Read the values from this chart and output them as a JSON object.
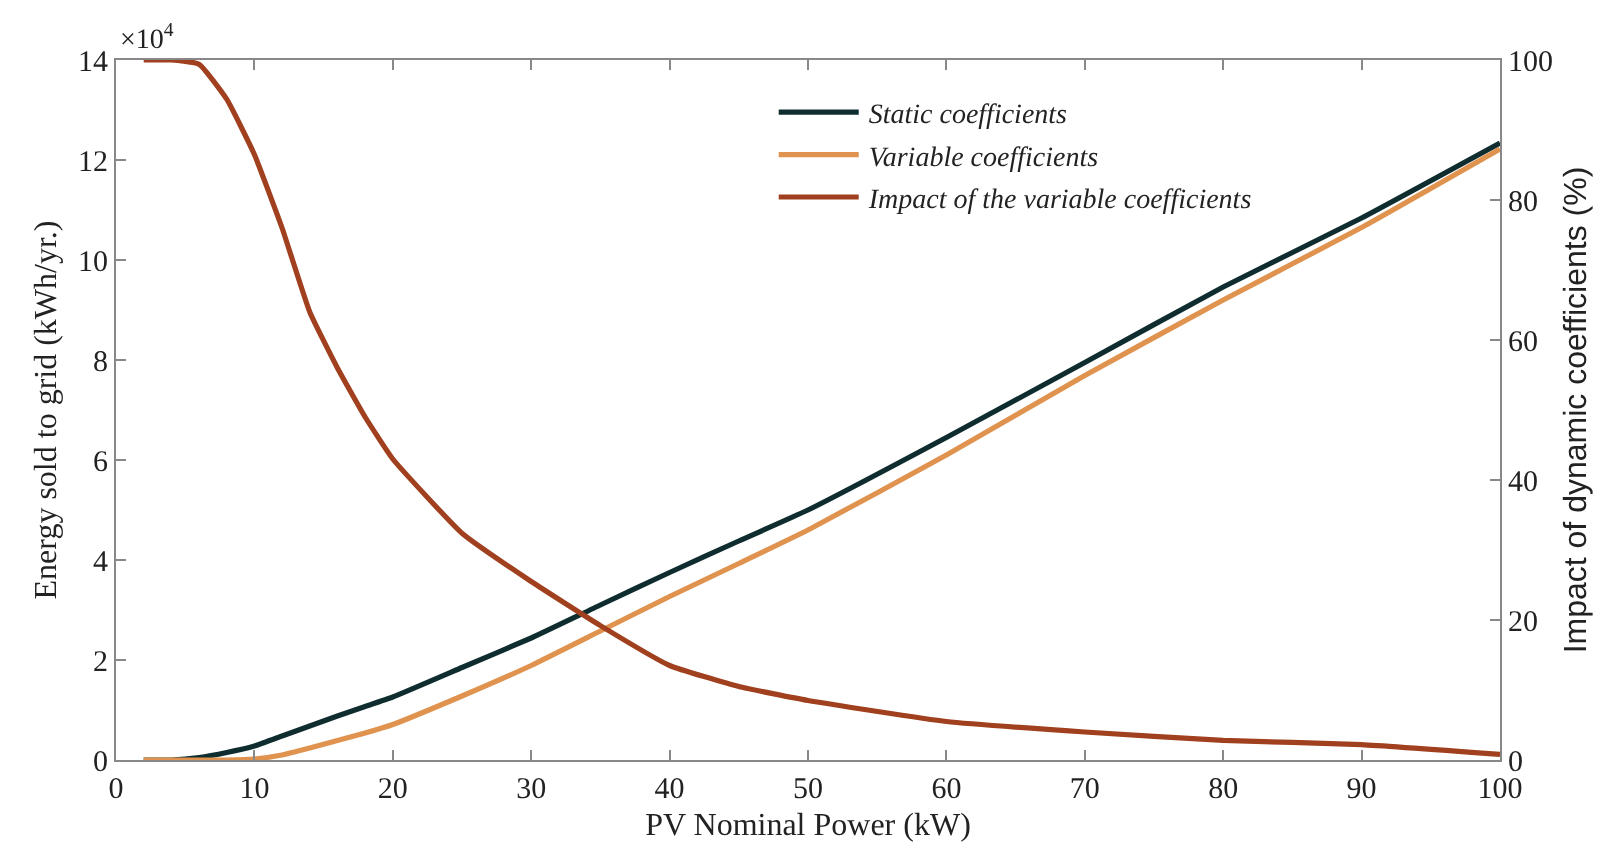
{
  "chart_data": {
    "type": "line",
    "xlabel": "PV Nominal Power (kW)",
    "ylabel": "Energy sold to grid (kWh/yr.)",
    "y2label": "Impact of dynamic coefficients (%)",
    "annotations": [
      "×10$^{4}$"
    ],
    "xlim": [
      0,
      100
    ],
    "xticks": [
      0,
      10,
      20,
      30,
      40,
      50,
      60,
      70,
      80,
      90,
      100
    ],
    "ylim": [
      0,
      14
    ],
    "yticks": [
      0,
      2,
      4,
      6,
      8,
      10,
      12,
      14
    ],
    "y2lim": [
      0,
      100
    ],
    "y2ticks": [
      0,
      20,
      40,
      60,
      80,
      100
    ],
    "legend": "top right",
    "series": [
      {
        "name": "Static coefficients",
        "color": "#0f2d2f",
        "x": [
          2,
          4,
          6,
          8,
          10,
          12,
          14,
          16,
          18,
          20,
          25,
          30,
          35,
          40,
          45,
          50,
          60,
          70,
          80,
          90,
          100
        ],
        "values": [
          0,
          0,
          0.05,
          0.15,
          0.28,
          0.48,
          0.68,
          0.88,
          1.07,
          1.26,
          1.85,
          2.44,
          3.1,
          3.75,
          4.38,
          5.0,
          6.45,
          7.95,
          9.46,
          10.84,
          12.34
        ]
      },
      {
        "name": "Variable coefficients",
        "color": "#e0934f",
        "x": [
          2,
          4,
          6,
          8,
          10,
          12,
          14,
          16,
          18,
          20,
          25,
          30,
          35,
          40,
          45,
          50,
          60,
          70,
          80,
          90,
          100
        ],
        "values": [
          0,
          0,
          0,
          0,
          0.02,
          0.1,
          0.24,
          0.39,
          0.54,
          0.71,
          1.28,
          1.89,
          2.58,
          3.27,
          3.93,
          4.6,
          6.1,
          7.69,
          9.2,
          10.65,
          12.22
        ]
      },
      {
        "name": "Impact of the variable coefficients",
        "color": "#a0401e",
        "axis": "y2",
        "x": [
          2,
          4,
          6,
          8,
          10,
          12,
          14,
          16,
          18,
          20,
          25,
          30,
          35,
          40,
          45,
          50,
          60,
          70,
          80,
          90,
          100
        ],
        "values": [
          100,
          100,
          99.4,
          94.4,
          86.5,
          76,
          64,
          56,
          49,
          43,
          32.4,
          25.5,
          19.2,
          13.5,
          10.5,
          8.5,
          5.5,
          4,
          2.8,
          2.2,
          0.8
        ]
      }
    ]
  }
}
